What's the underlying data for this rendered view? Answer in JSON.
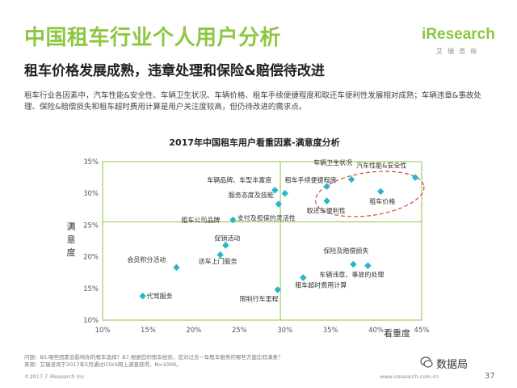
{
  "header": {
    "title": "中国租车行业个人用户分析",
    "subtitle": "租车价格发展成熟，违章处理和保险&赔偿待改进",
    "description": "租车行业各因素中，汽车性能&安全性、车辆卫生状况、车辆价格、租车手续便捷程度和取还车便利性发展相对成熟；车辆违章&事故处理、保险&赔偿损失和租车超时费用计算是用户关注度较高，但仍待改进的需求点。",
    "logo_text": "iResearch",
    "logo_sub": "艾瑞咨询"
  },
  "footer": {
    "question": "问题：B5.哪些因素会影响你的租车选择？B7.根据您的租车经验，您对过去一年租车服务的哪些方面比较满意？",
    "source": "来源：艾瑞咨询于2017年5月通过iClick网上调查获得，N=1000。",
    "copyright": "©2017.7 iResearch Inc",
    "url": "www.iresearch.com.cn",
    "page": "37",
    "watermark": "数据局"
  },
  "colors": {
    "accent": "#8dc63f",
    "point": "#29b6c9",
    "ellipse": "#d9534f",
    "grid": "#8dc63f"
  },
  "chart_data": {
    "type": "scatter",
    "title": "2017年中国租车用户看重因素-满意度分析",
    "xlabel": "看重度",
    "ylabel": "满意度",
    "xlim": [
      10,
      45
    ],
    "ylim": [
      10,
      35
    ],
    "x_ticks": [
      "10%",
      "15%",
      "20%",
      "25%",
      "30%",
      "35%",
      "40%",
      "45%"
    ],
    "y_ticks": [
      "10%",
      "15%",
      "20%",
      "25%",
      "30%",
      "35%"
    ],
    "quadrant_lines": {
      "x": 29.5,
      "y": 25.5
    },
    "highlight_ellipse": "top-right",
    "points": [
      {
        "label": "汽车性能&安全性",
        "x": 44.3,
        "y": 32.5
      },
      {
        "label": "车辆卫生状况",
        "x": 37.3,
        "y": 32.2
      },
      {
        "label": "租车手续便捷程度",
        "x": 34.6,
        "y": 31.1
      },
      {
        "label": "租车价格",
        "x": 40.5,
        "y": 30.3
      },
      {
        "label": "取还车便利性",
        "x": 34.6,
        "y": 28.8
      },
      {
        "label": "车辆品牌、车型丰富度",
        "x": 28.9,
        "y": 30.5
      },
      {
        "label": "服务态度及技能",
        "x": 30.0,
        "y": 30.0
      },
      {
        "label": "支付及担保的灵活性",
        "x": 29.3,
        "y": 28.3
      },
      {
        "label": "租车公司品牌",
        "x": 24.3,
        "y": 25.8
      },
      {
        "label": "促销活动",
        "x": 23.5,
        "y": 21.8
      },
      {
        "label": "送车上门服务",
        "x": 22.9,
        "y": 20.3
      },
      {
        "label": "会员积分活动",
        "x": 18.1,
        "y": 18.3
      },
      {
        "label": "代驾服务",
        "x": 14.4,
        "y": 13.8
      },
      {
        "label": "限制行车里程",
        "x": 29.2,
        "y": 14.8
      },
      {
        "label": "保险及赔偿损失",
        "x": 37.5,
        "y": 18.8
      },
      {
        "label": "车辆违章、事故的处理",
        "x": 39.1,
        "y": 18.6
      },
      {
        "label": "租车超时费用计算",
        "x": 32.0,
        "y": 16.7
      }
    ]
  }
}
